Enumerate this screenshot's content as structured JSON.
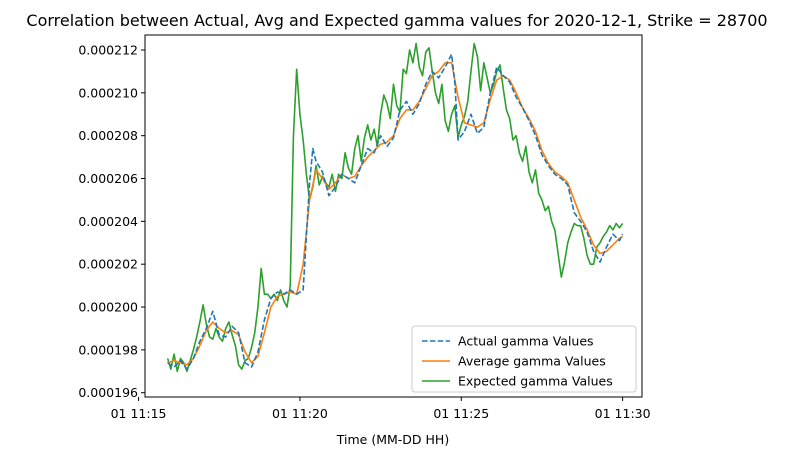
{
  "chart_data": {
    "type": "line",
    "title": "Correlation between Actual, Avg and Expected gamma values for 2020-12-1, Strike = 28700",
    "xlabel": "Time (MM-DD HH)",
    "ylabel": "",
    "x_unit": "minutes",
    "xlim": [
      15.2,
      30.6
    ],
    "ylim": [
      0.0001958,
      0.0002127
    ],
    "x_ticks": [
      {
        "value": 15,
        "label": "01 11:15"
      },
      {
        "value": 20,
        "label": "01 11:20"
      },
      {
        "value": 25,
        "label": "01 11:25"
      },
      {
        "value": 30,
        "label": "01 11:30"
      }
    ],
    "y_ticks": [
      {
        "value": 0.000196,
        "label": "0.000196"
      },
      {
        "value": 0.000198,
        "label": "0.000198"
      },
      {
        "value": 0.0002,
        "label": "0.000200"
      },
      {
        "value": 0.000202,
        "label": "0.000202"
      },
      {
        "value": 0.000204,
        "label": "0.000204"
      },
      {
        "value": 0.000206,
        "label": "0.000206"
      },
      {
        "value": 0.000208,
        "label": "0.000208"
      },
      {
        "value": 0.00021,
        "label": "0.000210"
      },
      {
        "value": 0.000212,
        "label": "0.000212"
      }
    ],
    "grid": false,
    "legend_position": "lower-right",
    "series": [
      {
        "name": "Actual gamma Values",
        "color": "#1f77b4",
        "style": "dashed",
        "x": [
          15.9,
          16.1,
          16.3,
          16.5,
          16.7,
          16.9,
          17.1,
          17.3,
          17.5,
          17.7,
          17.9,
          18.1,
          18.3,
          18.5,
          18.7,
          18.9,
          19.1,
          19.3,
          19.5,
          19.7,
          19.9,
          20.1,
          20.3,
          20.4,
          20.5,
          20.7,
          20.9,
          21.1,
          21.3,
          21.5,
          21.7,
          21.9,
          22.1,
          22.3,
          22.5,
          22.7,
          22.9,
          23.1,
          23.3,
          23.5,
          23.7,
          23.9,
          24.1,
          24.3,
          24.5,
          24.7,
          24.8,
          24.9,
          25.1,
          25.3,
          25.5,
          25.7,
          25.9,
          26.1,
          26.3,
          26.5,
          26.7,
          26.9,
          27.1,
          27.3,
          27.5,
          27.7,
          27.9,
          28.1,
          28.3,
          28.5,
          28.7,
          28.9,
          29.1,
          29.3,
          29.5,
          29.7,
          29.9,
          30.0
        ],
        "y": [
          0.0001974,
          0.0001972,
          0.0001975,
          0.0001971,
          0.0001976,
          0.0001984,
          0.000199,
          0.0001998,
          0.0001987,
          0.0001986,
          0.0001991,
          0.0001988,
          0.0001974,
          0.0001972,
          0.0001979,
          0.0001994,
          0.0002004,
          0.0002007,
          0.0002006,
          0.0002008,
          0.0002006,
          0.0002008,
          0.0002058,
          0.0002074,
          0.0002068,
          0.0002063,
          0.0002052,
          0.0002056,
          0.0002062,
          0.000206,
          0.0002058,
          0.0002066,
          0.0002074,
          0.0002072,
          0.000208,
          0.0002075,
          0.0002079,
          0.0002092,
          0.0002096,
          0.000209,
          0.0002095,
          0.0002104,
          0.000211,
          0.0002107,
          0.0002112,
          0.0002118,
          0.0002105,
          0.0002078,
          0.0002082,
          0.000209,
          0.0002081,
          0.0002084,
          0.00021,
          0.0002112,
          0.0002108,
          0.0002105,
          0.0002098,
          0.0002093,
          0.0002087,
          0.000208,
          0.0002071,
          0.0002066,
          0.0002062,
          0.000206,
          0.0002057,
          0.0002044,
          0.000204,
          0.0002035,
          0.0002026,
          0.0002021,
          0.0002028,
          0.0002034,
          0.0002031,
          0.0002034
        ]
      },
      {
        "name": "Average gamma Values",
        "color": "#ff7f0e",
        "style": "solid",
        "x": [
          15.9,
          16.1,
          16.3,
          16.5,
          16.7,
          16.9,
          17.1,
          17.3,
          17.5,
          17.7,
          17.9,
          18.1,
          18.3,
          18.5,
          18.7,
          18.9,
          19.1,
          19.3,
          19.5,
          19.7,
          19.9,
          20.1,
          20.3,
          20.5,
          20.7,
          20.9,
          21.1,
          21.3,
          21.5,
          21.7,
          21.9,
          22.1,
          22.3,
          22.5,
          22.7,
          22.9,
          23.1,
          23.3,
          23.5,
          23.7,
          23.9,
          24.1,
          24.3,
          24.5,
          24.7,
          24.9,
          25.1,
          25.3,
          25.5,
          25.7,
          25.9,
          26.1,
          26.3,
          26.5,
          26.7,
          26.9,
          27.1,
          27.3,
          27.5,
          27.7,
          27.9,
          28.1,
          28.3,
          28.5,
          28.7,
          28.9,
          29.1,
          29.3,
          29.5,
          29.7,
          29.9,
          30.0
        ],
        "y": [
          0.0001974,
          0.0001975,
          0.0001974,
          0.0001973,
          0.0001976,
          0.0001982,
          0.0001989,
          0.0001993,
          0.000199,
          0.0001988,
          0.0001989,
          0.0001987,
          0.0001979,
          0.0001974,
          0.0001977,
          0.0001988,
          0.0002,
          0.0002005,
          0.0002006,
          0.0002007,
          0.0002006,
          0.000202,
          0.000205,
          0.0002064,
          0.000206,
          0.0002055,
          0.0002058,
          0.0002062,
          0.000206,
          0.0002061,
          0.0002066,
          0.000207,
          0.0002073,
          0.0002076,
          0.0002077,
          0.000208,
          0.0002088,
          0.0002092,
          0.0002092,
          0.0002096,
          0.0002102,
          0.0002108,
          0.000211,
          0.0002114,
          0.0002114,
          0.0002098,
          0.0002086,
          0.0002085,
          0.0002084,
          0.0002086,
          0.0002097,
          0.0002106,
          0.0002108,
          0.0002106,
          0.00021,
          0.0002093,
          0.0002088,
          0.0002082,
          0.0002073,
          0.0002067,
          0.0002063,
          0.0002061,
          0.0002058,
          0.000205,
          0.0002042,
          0.0002036,
          0.0002029,
          0.0002025,
          0.0002026,
          0.0002029,
          0.0002032,
          0.0002033
        ]
      },
      {
        "name": "Expected gamma Values",
        "color": "#2ca02c",
        "style": "solid",
        "x": [
          15.9,
          16.0,
          16.1,
          16.2,
          16.3,
          16.4,
          16.5,
          16.6,
          16.7,
          16.8,
          16.9,
          17.0,
          17.1,
          17.2,
          17.3,
          17.4,
          17.5,
          17.6,
          17.7,
          17.8,
          17.9,
          18.0,
          18.1,
          18.2,
          18.3,
          18.4,
          18.5,
          18.6,
          18.7,
          18.8,
          18.9,
          19.0,
          19.1,
          19.2,
          19.3,
          19.4,
          19.5,
          19.6,
          19.7,
          19.8,
          19.9,
          20.0,
          20.1,
          20.2,
          20.3,
          20.4,
          20.5,
          20.6,
          20.7,
          20.8,
          20.9,
          21.0,
          21.1,
          21.2,
          21.3,
          21.4,
          21.5,
          21.6,
          21.7,
          21.8,
          21.9,
          22.0,
          22.1,
          22.2,
          22.3,
          22.4,
          22.5,
          22.6,
          22.7,
          22.8,
          22.9,
          23.0,
          23.1,
          23.2,
          23.3,
          23.4,
          23.5,
          23.6,
          23.7,
          23.8,
          23.9,
          24.0,
          24.1,
          24.2,
          24.3,
          24.4,
          24.5,
          24.6,
          24.7,
          24.8,
          24.9,
          25.0,
          25.1,
          25.2,
          25.3,
          25.4,
          25.5,
          25.6,
          25.7,
          25.8,
          25.9,
          26.0,
          26.1,
          26.2,
          26.3,
          26.4,
          26.5,
          26.6,
          26.7,
          26.8,
          26.9,
          27.0,
          27.1,
          27.2,
          27.3,
          27.4,
          27.5,
          27.6,
          27.7,
          27.8,
          27.9,
          28.0,
          28.1,
          28.2,
          28.3,
          28.4,
          28.5,
          28.6,
          28.7,
          28.8,
          28.9,
          29.0,
          29.1,
          29.2,
          29.3,
          29.4,
          29.5,
          29.6,
          29.7,
          29.8,
          29.9,
          30.0
        ],
        "y": [
          0.0001976,
          0.0001971,
          0.0001978,
          0.000197,
          0.0001976,
          0.0001974,
          0.000197,
          0.0001975,
          0.000198,
          0.0001986,
          0.0001993,
          0.0002001,
          0.0001992,
          0.0001986,
          0.0001985,
          0.000199,
          0.0001986,
          0.0001984,
          0.000199,
          0.0001993,
          0.0001987,
          0.0001982,
          0.0001973,
          0.0001971,
          0.0001975,
          0.0001976,
          0.0001981,
          0.0001988,
          0.0002,
          0.0002018,
          0.0002006,
          0.0002006,
          0.0002004,
          0.0002006,
          0.0002003,
          0.0002008,
          0.0002003,
          0.0002,
          0.000201,
          0.000208,
          0.0002111,
          0.000209,
          0.0002078,
          0.0002062,
          0.000205,
          0.0002056,
          0.0002066,
          0.0002057,
          0.0002061,
          0.0002058,
          0.0002056,
          0.0002062,
          0.0002054,
          0.0002062,
          0.000206,
          0.0002072,
          0.0002065,
          0.0002062,
          0.0002074,
          0.000208,
          0.0002068,
          0.0002079,
          0.0002085,
          0.0002078,
          0.0002083,
          0.0002075,
          0.000209,
          0.0002099,
          0.0002095,
          0.0002088,
          0.0002104,
          0.0002094,
          0.0002091,
          0.0002111,
          0.0002109,
          0.000212,
          0.0002114,
          0.0002123,
          0.0002112,
          0.0002108,
          0.0002119,
          0.0002121,
          0.000211,
          0.00021,
          0.0002095,
          0.0002104,
          0.0002087,
          0.0002082,
          0.000209,
          0.0002094,
          0.0002079,
          0.0002085,
          0.0002089,
          0.0002096,
          0.000211,
          0.0002123,
          0.0002117,
          0.0002101,
          0.0002114,
          0.0002107,
          0.00021,
          0.0002104,
          0.000211,
          0.0002113,
          0.0002102,
          0.0002092,
          0.0002088,
          0.0002078,
          0.000208,
          0.0002072,
          0.0002068,
          0.0002075,
          0.0002063,
          0.0002058,
          0.0002064,
          0.0002053,
          0.000205,
          0.0002045,
          0.0002047,
          0.000204,
          0.0002036,
          0.0002025,
          0.0002014,
          0.0002021,
          0.000203,
          0.0002035,
          0.0002039,
          0.0002038,
          0.0002038,
          0.0002032,
          0.0002024,
          0.000202,
          0.000202,
          0.0002028,
          0.000203,
          0.0002033,
          0.0002035,
          0.0002038,
          0.0002036,
          0.0002039,
          0.0002037,
          0.0002039
        ]
      }
    ]
  }
}
